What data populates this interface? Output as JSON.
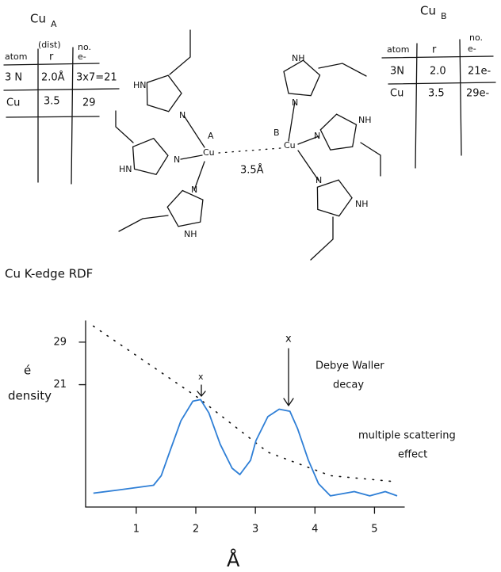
{
  "table_a": {
    "title": "Cu",
    "subscript": "A",
    "headers": [
      "atom",
      "(dist)",
      "r",
      "no.",
      "e-"
    ],
    "rows": [
      [
        "3 N",
        "2.0Å",
        "3x7=21"
      ],
      [
        "Cu",
        "3.5",
        "29"
      ]
    ]
  },
  "table_b": {
    "title": "Cu",
    "subscript": "B",
    "headers": [
      "atom",
      "r",
      "no.",
      "e-"
    ],
    "rows": [
      [
        "3N",
        "2.0",
        "21e-"
      ],
      [
        "Cu",
        "3.5",
        "29e-"
      ]
    ]
  },
  "molecule": {
    "labels": [
      "HN",
      "N",
      "HN",
      "N",
      "N",
      "NH",
      "Cu",
      "A",
      "NH",
      "N",
      "NH",
      "N",
      "N",
      "NH",
      "Cu",
      "B"
    ],
    "distance": "3.5Å"
  },
  "plot": {
    "title": "Cu K-edge RDF",
    "y_label": [
      "é",
      "density"
    ],
    "x_label": "Å",
    "xlim": [
      0.15,
      5.5
    ],
    "ylim": [
      -2,
      33
    ],
    "xticks": [
      1,
      2,
      3,
      4,
      5
    ],
    "yticks": [
      29,
      21
    ],
    "annotations": [
      "Debye Waller",
      "decay",
      "multiple scattering",
      "effect",
      "x",
      "x"
    ],
    "curve": {
      "color": "#2f7fd6",
      "x": [
        0.28,
        0.7,
        1.29,
        1.42,
        1.56,
        1.75,
        1.95,
        2.08,
        2.22,
        2.41,
        2.61,
        2.74,
        2.92,
        3.01,
        3.21,
        3.4,
        3.58,
        3.71,
        3.89,
        4.06,
        4.26,
        4.66,
        4.92,
        5.18,
        5.38
      ],
      "values": [
        0.6,
        1.2,
        2.1,
        3.9,
        8.3,
        14.2,
        17.9,
        18.2,
        15.7,
        9.8,
        5.3,
        4.1,
        6.8,
        10.5,
        15.0,
        16.4,
        16.0,
        12.7,
        6.8,
        2.4,
        0.1,
        0.9,
        0.1,
        0.9,
        0.1
      ]
    },
    "decay": {
      "x": [
        0.28,
        2.02,
        3.21,
        4.26,
        5.32
      ],
      "values": [
        32.0,
        18.7,
        8.3,
        3.9,
        2.8
      ]
    }
  }
}
